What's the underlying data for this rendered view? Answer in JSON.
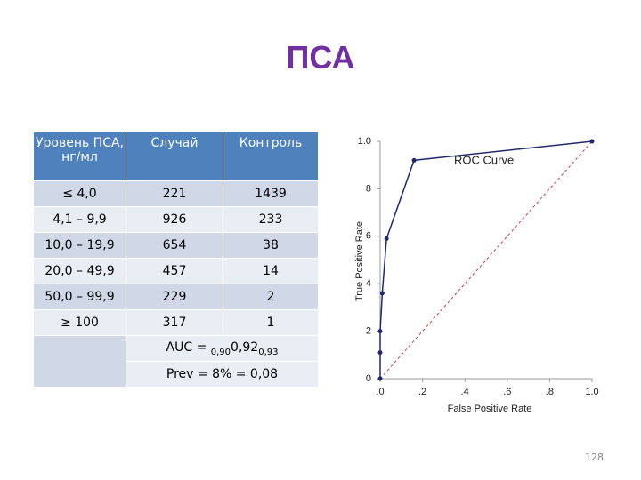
{
  "slide": {
    "title": "ПСА",
    "table": {
      "header": [
        "Уровень ПСА, нг/мл",
        "Случай",
        "Контроль"
      ],
      "rows": [
        [
          "≤ 4,0",
          "221",
          "1439"
        ],
        [
          "4,1 – 9,9",
          "926",
          "233"
        ],
        [
          "10,0 – 19,9",
          "654",
          "38"
        ],
        [
          "20,0 – 49,9",
          "457",
          "14"
        ],
        [
          "50,0 – 99,9",
          "229",
          "2"
        ],
        [
          "≥ 100",
          "317",
          "1"
        ]
      ],
      "auc": {
        "prefix": "AUC =",
        "low": "0,90",
        "value": "0,92",
        "high": "0,93"
      },
      "prev": "Prev = 8% = 0,08"
    },
    "page_number": "128"
  },
  "chart_data": {
    "type": "line",
    "annotation": "ROC Curve",
    "xlabel": "False Positive Rate",
    "ylabel": "True Positive Rate",
    "x": [
      0,
      0,
      0,
      0.01,
      0.03,
      0.16,
      1
    ],
    "series": [
      {
        "color": "#1f2a6b",
        "values": [
          0,
          0.11,
          0.2,
          0.36,
          0.59,
          0.92,
          1
        ]
      }
    ],
    "xlim": [
      0,
      1
    ],
    "ylim": [
      0,
      1
    ],
    "xticks": [
      {
        "value": 0,
        "label": ".0"
      },
      {
        "value": 0.2,
        "label": ".2"
      },
      {
        "value": 0.4,
        "label": ".4"
      },
      {
        "value": 0.6,
        "label": ".6"
      },
      {
        "value": 0.8,
        "label": ".8"
      },
      {
        "value": 1,
        "label": "1.0"
      }
    ],
    "yticks": [
      0,
      {
        "value": 0.2,
        "label": "2"
      },
      {
        "value": 0.4,
        "label": "4"
      },
      {
        "value": 0.6,
        "label": "6"
      },
      {
        "value": 0.8,
        "label": "8"
      },
      {
        "value": 1,
        "label": "1.0"
      }
    ],
    "diagonal_color": "#d04040"
  }
}
